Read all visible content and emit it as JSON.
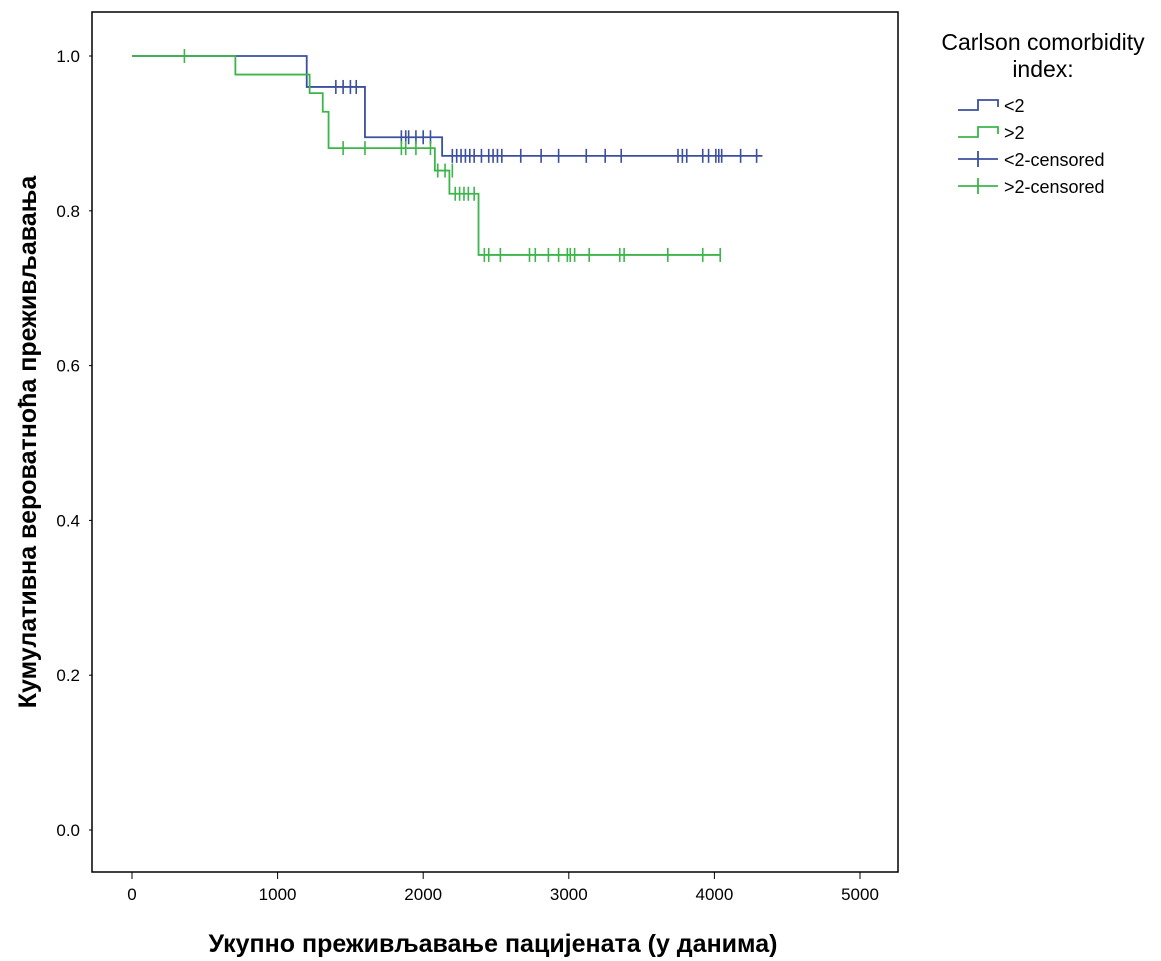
{
  "chart_data": {
    "type": "line",
    "subtype": "kaplan-meier",
    "xlabel": "Укупно преживљавање пацијената (у данима)",
    "ylabel": "Кумулативна вероватноћа преживљавања",
    "xlim": [
      0,
      5000
    ],
    "ylim": [
      0,
      1
    ],
    "x_ticks": [
      0,
      1000,
      2000,
      3000,
      4000,
      5000
    ],
    "y_ticks": [
      0.0,
      0.2,
      0.4,
      0.6,
      0.8,
      1.0
    ],
    "x_tick_labels": [
      "0",
      "1000",
      "2000",
      "3000",
      "4000",
      "5000"
    ],
    "y_tick_labels": [
      "0.0",
      "0.2",
      "0.4",
      "0.6",
      "0.8",
      "1.0"
    ],
    "grid": false,
    "legend": {
      "position": "top-right, outside plot",
      "title_lines": [
        "Carlson comorbidity",
        "index:"
      ],
      "entries": [
        "<2",
        ">2",
        "<2-censored",
        ">2-censored"
      ]
    },
    "series": [
      {
        "name": "<2",
        "color": "#3b4fa0",
        "steps": [
          [
            0,
            1.0
          ],
          [
            1200,
            0.96
          ],
          [
            1600,
            0.895
          ],
          [
            2130,
            0.871
          ],
          [
            4330,
            0.871
          ]
        ],
        "censored": [
          [
            1400,
            0.96
          ],
          [
            1450,
            0.96
          ],
          [
            1500,
            0.96
          ],
          [
            1540,
            0.96
          ],
          [
            1850,
            0.895
          ],
          [
            1880,
            0.895
          ],
          [
            1900,
            0.895
          ],
          [
            1950,
            0.895
          ],
          [
            2000,
            0.895
          ],
          [
            2050,
            0.895
          ],
          [
            2200,
            0.871
          ],
          [
            2230,
            0.871
          ],
          [
            2260,
            0.871
          ],
          [
            2290,
            0.871
          ],
          [
            2320,
            0.871
          ],
          [
            2350,
            0.871
          ],
          [
            2400,
            0.871
          ],
          [
            2450,
            0.871
          ],
          [
            2480,
            0.871
          ],
          [
            2510,
            0.871
          ],
          [
            2540,
            0.871
          ],
          [
            2670,
            0.871
          ],
          [
            2810,
            0.871
          ],
          [
            2930,
            0.871
          ],
          [
            3120,
            0.871
          ],
          [
            3250,
            0.871
          ],
          [
            3360,
            0.871
          ],
          [
            3750,
            0.871
          ],
          [
            3780,
            0.871
          ],
          [
            3810,
            0.871
          ],
          [
            3920,
            0.871
          ],
          [
            3960,
            0.871
          ],
          [
            4010,
            0.871
          ],
          [
            4030,
            0.871
          ],
          [
            4050,
            0.871
          ],
          [
            4180,
            0.871
          ],
          [
            4290,
            0.871
          ]
        ]
      },
      {
        "name": ">2",
        "color": "#3cb54a",
        "steps": [
          [
            0,
            1.0
          ],
          [
            710,
            0.976
          ],
          [
            1220,
            0.952
          ],
          [
            1310,
            0.928
          ],
          [
            1350,
            0.881
          ],
          [
            2080,
            0.852
          ],
          [
            2180,
            0.822
          ],
          [
            2380,
            0.743
          ],
          [
            4040,
            0.743
          ]
        ],
        "censored": [
          [
            360,
            1.0
          ],
          [
            1450,
            0.881
          ],
          [
            1600,
            0.881
          ],
          [
            1850,
            0.881
          ],
          [
            1880,
            0.881
          ],
          [
            1950,
            0.881
          ],
          [
            2050,
            0.881
          ],
          [
            2100,
            0.852
          ],
          [
            2150,
            0.852
          ],
          [
            2200,
            0.852
          ],
          [
            2220,
            0.822
          ],
          [
            2250,
            0.822
          ],
          [
            2280,
            0.822
          ],
          [
            2310,
            0.822
          ],
          [
            2350,
            0.822
          ],
          [
            2420,
            0.743
          ],
          [
            2450,
            0.743
          ],
          [
            2530,
            0.743
          ],
          [
            2730,
            0.743
          ],
          [
            2770,
            0.743
          ],
          [
            2860,
            0.743
          ],
          [
            2930,
            0.743
          ],
          [
            2990,
            0.743
          ],
          [
            3010,
            0.743
          ],
          [
            3040,
            0.743
          ],
          [
            3140,
            0.743
          ],
          [
            3350,
            0.743
          ],
          [
            3380,
            0.743
          ],
          [
            3680,
            0.743
          ],
          [
            3920,
            0.743
          ],
          [
            4040,
            0.743
          ]
        ]
      }
    ]
  }
}
